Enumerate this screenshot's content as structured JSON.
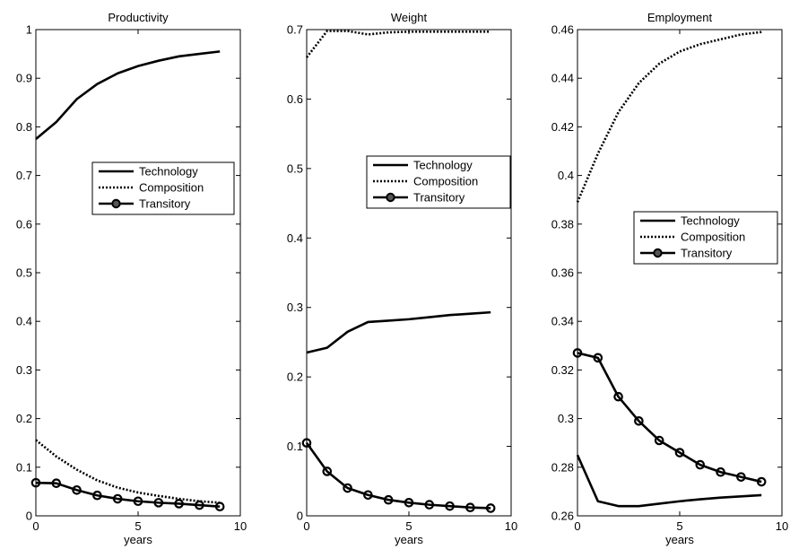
{
  "chart_data": [
    {
      "type": "line",
      "title": "Productivity",
      "xlabel": "years",
      "ylabel": "",
      "xlim": [
        0,
        10
      ],
      "ylim": [
        0,
        1
      ],
      "xticks": [
        0,
        5,
        10
      ],
      "yticks": [
        0,
        0.1,
        0.2,
        0.3,
        0.4,
        0.5,
        0.6,
        0.7,
        0.8,
        0.9,
        1
      ],
      "ytick_labels": [
        "0",
        "0.1",
        "0.2",
        "0.3",
        "0.4",
        "0.5",
        "0.6",
        "0.7",
        "0.8",
        "0.9",
        "1"
      ],
      "grid": false,
      "legend_position": "center-right",
      "x": [
        0,
        1,
        2,
        3,
        4,
        5,
        6,
        7,
        8,
        9
      ],
      "series": [
        {
          "name": "Technology",
          "style": "solid",
          "values": [
            0.775,
            0.81,
            0.857,
            0.888,
            0.91,
            0.925,
            0.936,
            0.945,
            0.95,
            0.955
          ]
        },
        {
          "name": "Composition",
          "style": "dotted",
          "values": [
            0.156,
            0.122,
            0.095,
            0.073,
            0.058,
            0.048,
            0.041,
            0.035,
            0.03,
            0.027
          ]
        },
        {
          "name": "Transitory",
          "style": "circle",
          "values": [
            0.068,
            0.067,
            0.053,
            0.042,
            0.035,
            0.03,
            0.027,
            0.025,
            0.022,
            0.019
          ]
        }
      ]
    },
    {
      "type": "line",
      "title": "Weight",
      "xlabel": "years",
      "ylabel": "",
      "xlim": [
        0,
        10
      ],
      "ylim": [
        0,
        0.7
      ],
      "xticks": [
        0,
        5,
        10
      ],
      "yticks": [
        0,
        0.1,
        0.2,
        0.3,
        0.4,
        0.5,
        0.6,
        0.7
      ],
      "ytick_labels": [
        "0",
        "0.1",
        "0.2",
        "0.3",
        "0.4",
        "0.5",
        "0.6",
        "0.7"
      ],
      "grid": false,
      "legend_position": "center-right",
      "x": [
        0,
        1,
        2,
        3,
        4,
        5,
        6,
        7,
        8,
        9
      ],
      "series": [
        {
          "name": "Technology",
          "style": "solid",
          "values": [
            0.235,
            0.242,
            0.265,
            0.279,
            0.281,
            0.283,
            0.286,
            0.289,
            0.291,
            0.293
          ]
        },
        {
          "name": "Composition",
          "style": "dotted",
          "values": [
            0.66,
            0.698,
            0.698,
            0.693,
            0.696,
            0.697,
            0.697,
            0.697,
            0.697,
            0.697
          ]
        },
        {
          "name": "Transitory",
          "style": "circle",
          "values": [
            0.105,
            0.064,
            0.04,
            0.03,
            0.023,
            0.019,
            0.016,
            0.014,
            0.012,
            0.011
          ]
        }
      ]
    },
    {
      "type": "line",
      "title": "Employment",
      "xlabel": "years",
      "ylabel": "",
      "xlim": [
        0,
        10
      ],
      "ylim": [
        0.26,
        0.46
      ],
      "xticks": [
        0,
        5,
        10
      ],
      "yticks": [
        0.26,
        0.28,
        0.3,
        0.32,
        0.34,
        0.36,
        0.38,
        0.4,
        0.42,
        0.44,
        0.46
      ],
      "ytick_labels": [
        "0.26",
        "0.28",
        "0.3",
        "0.32",
        "0.34",
        "0.36",
        "0.38",
        "0.4",
        "0.42",
        "0.44",
        "0.46"
      ],
      "grid": false,
      "legend_position": "center-right",
      "x": [
        0,
        1,
        2,
        3,
        4,
        5,
        6,
        7,
        8,
        9
      ],
      "series": [
        {
          "name": "Technology",
          "style": "solid",
          "values": [
            0.285,
            0.266,
            0.264,
            0.264,
            0.265,
            0.266,
            0.2668,
            0.2675,
            0.268,
            0.2685
          ]
        },
        {
          "name": "Composition",
          "style": "dotted",
          "values": [
            0.389,
            0.409,
            0.426,
            0.438,
            0.446,
            0.451,
            0.454,
            0.456,
            0.458,
            0.459
          ]
        },
        {
          "name": "Transitory",
          "style": "circle",
          "values": [
            0.327,
            0.325,
            0.309,
            0.299,
            0.291,
            0.286,
            0.281,
            0.278,
            0.276,
            0.274
          ]
        }
      ]
    }
  ]
}
